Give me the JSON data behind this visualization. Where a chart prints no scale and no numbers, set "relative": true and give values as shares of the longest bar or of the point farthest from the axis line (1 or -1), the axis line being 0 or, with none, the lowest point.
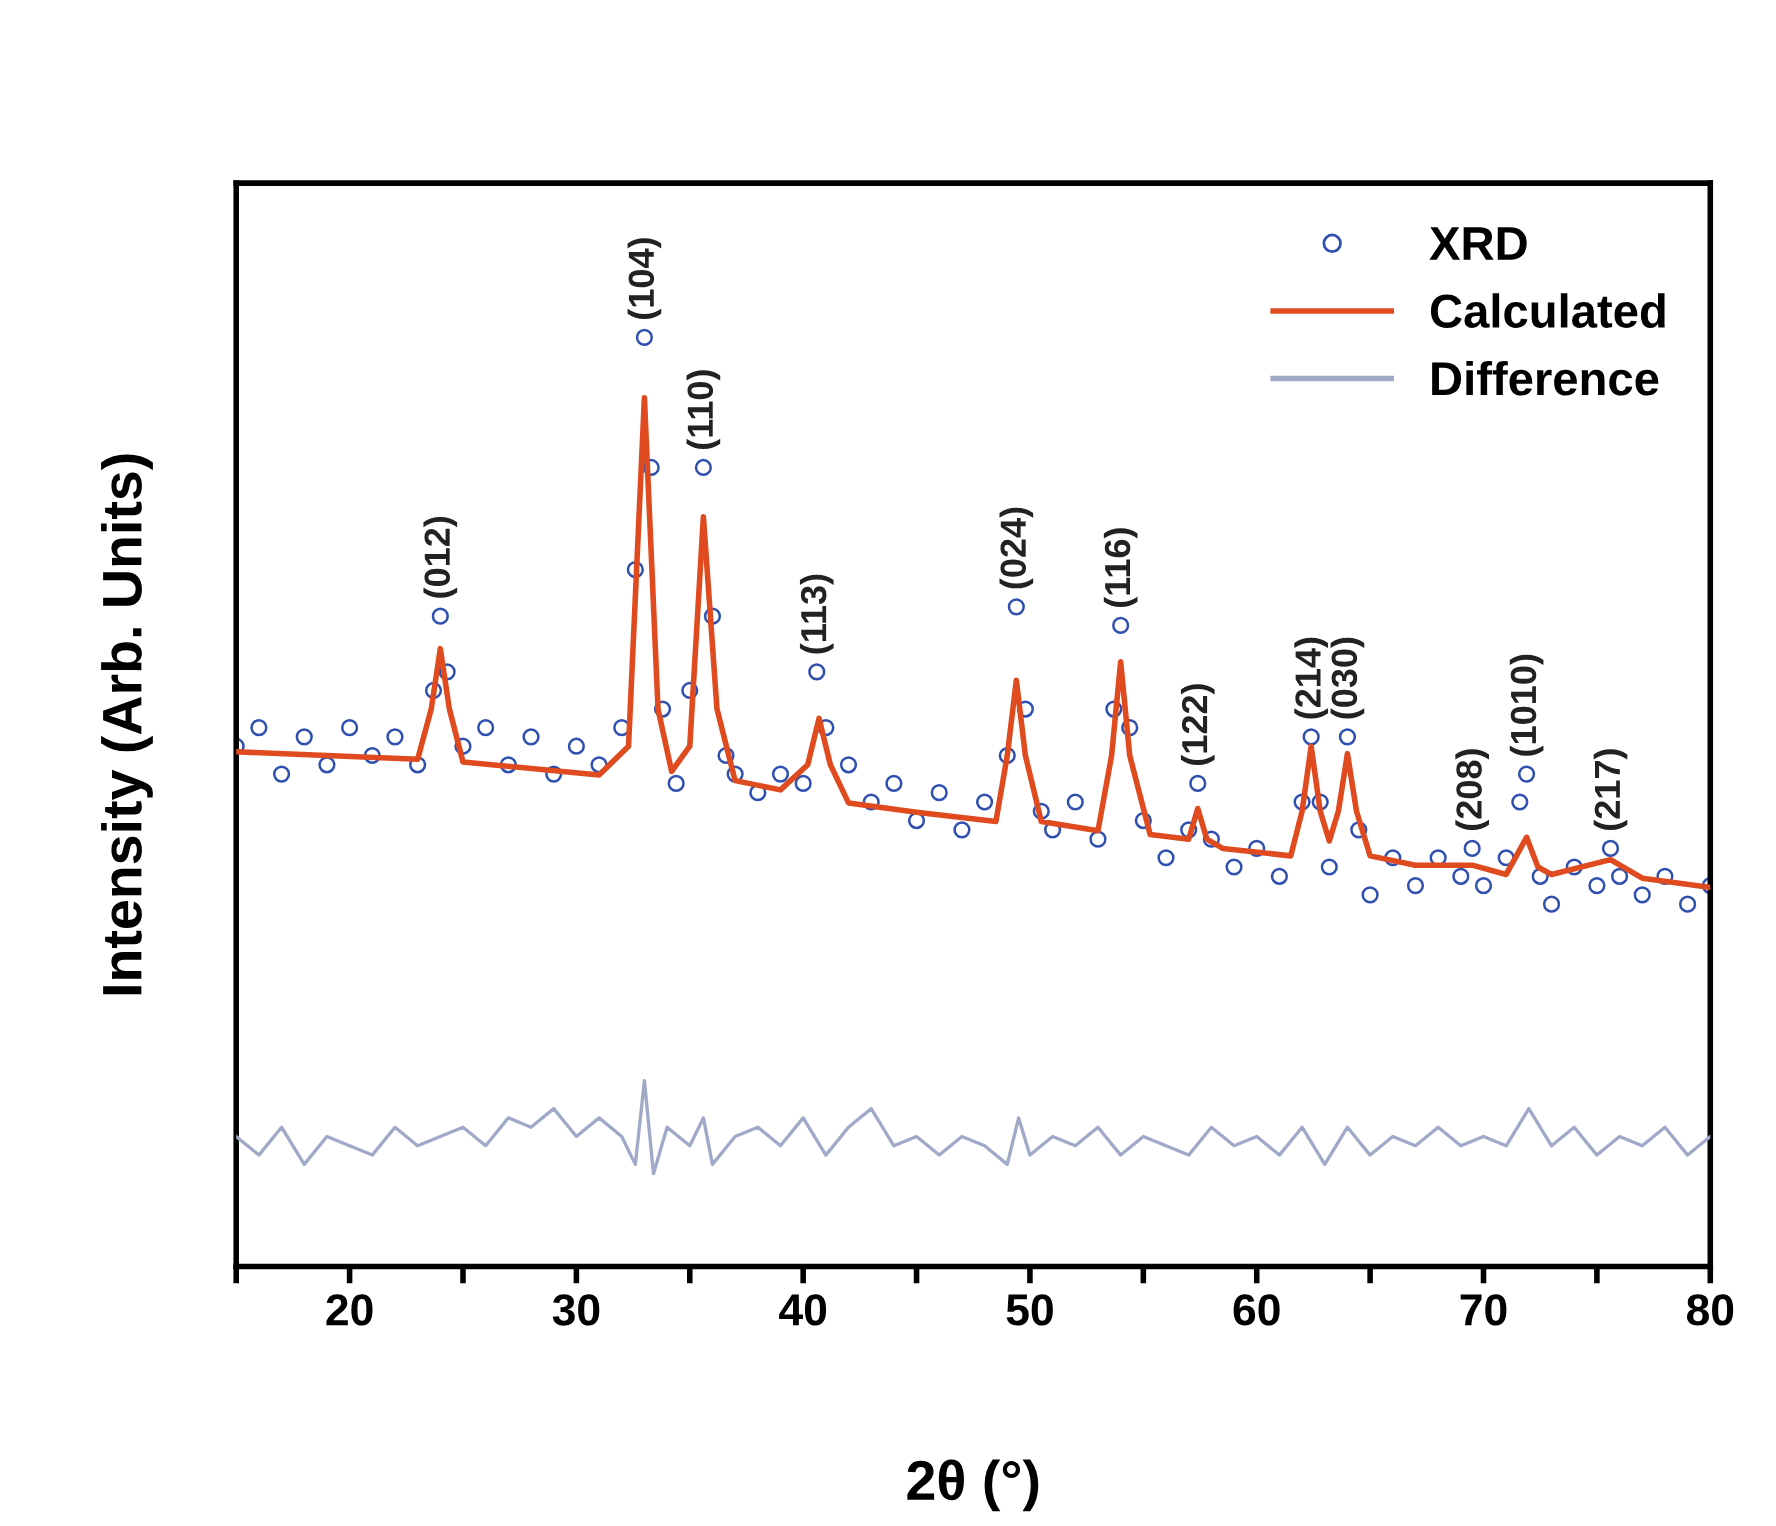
{
  "chart_data": {
    "type": "scatter",
    "xlabel": "2θ (°)",
    "ylabel": "Intensity (Arb. Units)",
    "relative": true,
    "tick_labels": "x",
    "legend": "top right",
    "grid": false,
    "xlim": [
      15,
      80
    ],
    "xticks": [
      {
        "value": 15,
        "label": null
      },
      20,
      {
        "value": 25,
        "label": null
      },
      30,
      {
        "value": 35,
        "label": null
      },
      40,
      {
        "value": 45,
        "label": null
      },
      50,
      {
        "value": 55,
        "label": null
      },
      60,
      {
        "value": 65,
        "label": null
      },
      70,
      {
        "value": 75,
        "label": null
      },
      80
    ],
    "series": [
      {
        "name": "XRD",
        "marker": "circle",
        "color": "#3050b0",
        "x": [
          15,
          16,
          17,
          18,
          19,
          20,
          21,
          22,
          23,
          23.7,
          24,
          24.3,
          25,
          26,
          27,
          28,
          29,
          30,
          31,
          32,
          32.6,
          33,
          33.3,
          33.8,
          34.4,
          35,
          35.6,
          36,
          36.6,
          37,
          38,
          39,
          40,
          40.6,
          41,
          42,
          43,
          44,
          45,
          46,
          47,
          48,
          49,
          49.4,
          49.8,
          50.5,
          51,
          52,
          53,
          53.7,
          54,
          54.4,
          55,
          56,
          57,
          57.4,
          58,
          59,
          60,
          61,
          62,
          62.4,
          62.8,
          63.2,
          64,
          64.5,
          65,
          66,
          67,
          68,
          69,
          69.5,
          70,
          71,
          71.6,
          71.9,
          72.5,
          73,
          74,
          75,
          75.6,
          76,
          77,
          78,
          79,
          80
        ],
        "values": [
          0.56,
          0.58,
          0.53,
          0.57,
          0.54,
          0.58,
          0.55,
          0.57,
          0.54,
          0.62,
          0.7,
          0.64,
          0.56,
          0.58,
          0.54,
          0.57,
          0.53,
          0.56,
          0.54,
          0.58,
          0.75,
          1.0,
          0.86,
          0.6,
          0.52,
          0.62,
          0.86,
          0.7,
          0.55,
          0.53,
          0.51,
          0.53,
          0.52,
          0.64,
          0.58,
          0.54,
          0.5,
          0.52,
          0.48,
          0.51,
          0.47,
          0.5,
          0.55,
          0.71,
          0.6,
          0.49,
          0.47,
          0.5,
          0.46,
          0.6,
          0.69,
          0.58,
          0.48,
          0.44,
          0.47,
          0.52,
          0.46,
          0.43,
          0.45,
          0.42,
          0.5,
          0.57,
          0.5,
          0.43,
          0.57,
          0.47,
          0.4,
          0.44,
          0.41,
          0.44,
          0.42,
          0.45,
          0.41,
          0.44,
          0.5,
          0.53,
          0.42,
          0.39,
          0.43,
          0.41,
          0.45,
          0.42,
          0.4,
          0.42,
          0.39,
          0.41
        ]
      },
      {
        "name": "Calculated",
        "type": "line",
        "line_style": "solid",
        "color": "#e04a1f",
        "x": [
          15,
          23,
          23.6,
          24,
          24.4,
          25,
          31,
          32.3,
          33,
          33.6,
          34.2,
          35,
          35.6,
          36.2,
          37,
          39,
          40.2,
          40.7,
          41.2,
          42,
          45,
          48.5,
          49,
          49.4,
          49.8,
          50.5,
          53,
          53.6,
          54,
          54.4,
          55.3,
          57,
          57.4,
          57.8,
          58.5,
          61.5,
          62,
          62.4,
          62.8,
          63.2,
          63.6,
          64,
          64.4,
          65,
          67,
          69.5,
          71,
          71.9,
          72.4,
          73,
          75.6,
          77,
          80
        ],
        "values": [
          0.554,
          0.546,
          0.6,
          0.665,
          0.6,
          0.543,
          0.529,
          0.56,
          0.935,
          0.6,
          0.533,
          0.56,
          0.807,
          0.6,
          0.523,
          0.513,
          0.54,
          0.59,
          0.54,
          0.499,
          0.489,
          0.479,
          0.55,
          0.631,
          0.55,
          0.479,
          0.469,
          0.55,
          0.651,
          0.55,
          0.465,
          0.46,
          0.493,
          0.46,
          0.45,
          0.442,
          0.49,
          0.56,
          0.49,
          0.458,
          0.49,
          0.552,
          0.49,
          0.442,
          0.432,
          0.432,
          0.422,
          0.462,
          0.43,
          0.422,
          0.438,
          0.418,
          0.408
        ]
      },
      {
        "name": "Difference",
        "type": "line",
        "line_style": "solid",
        "color": "#a0aac8",
        "x": [
          15,
          16,
          17,
          18,
          19,
          20,
          21,
          22,
          23,
          24,
          25,
          26,
          27,
          28,
          29,
          30,
          31,
          32,
          32.6,
          33,
          33.4,
          34,
          35,
          35.6,
          36,
          37,
          38,
          39,
          40,
          41,
          42,
          43,
          44,
          45,
          46,
          47,
          48,
          49,
          49.5,
          50,
          51,
          52,
          53,
          54,
          55,
          56,
          57,
          58,
          59,
          60,
          61,
          62,
          63,
          64,
          65,
          66,
          67,
          68,
          69,
          70,
          71,
          72,
          73,
          74,
          75,
          76,
          77,
          78,
          79,
          80
        ],
        "values": [
          0.14,
          0.12,
          0.15,
          0.11,
          0.14,
          0.13,
          0.12,
          0.15,
          0.13,
          0.14,
          0.15,
          0.13,
          0.16,
          0.15,
          0.17,
          0.14,
          0.16,
          0.14,
          0.11,
          0.2,
          0.1,
          0.15,
          0.13,
          0.16,
          0.11,
          0.14,
          0.15,
          0.13,
          0.16,
          0.12,
          0.15,
          0.17,
          0.13,
          0.14,
          0.12,
          0.14,
          0.13,
          0.11,
          0.16,
          0.12,
          0.14,
          0.13,
          0.15,
          0.12,
          0.14,
          0.13,
          0.12,
          0.15,
          0.13,
          0.14,
          0.12,
          0.15,
          0.11,
          0.15,
          0.12,
          0.14,
          0.13,
          0.15,
          0.13,
          0.14,
          0.13,
          0.17,
          0.13,
          0.15,
          0.12,
          0.14,
          0.13,
          0.15,
          0.12,
          0.14
        ]
      }
    ],
    "annotations": [
      {
        "text": "(012)",
        "x": 24,
        "y": 0.7
      },
      {
        "text": "(104)",
        "x": 33,
        "y": 1.0
      },
      {
        "text": "(110)",
        "x": 35.6,
        "y": 0.86
      },
      {
        "text": "(113)",
        "x": 40.6,
        "y": 0.64
      },
      {
        "text": "(024)",
        "x": 49.4,
        "y": 0.71
      },
      {
        "text": "(116)",
        "x": 54,
        "y": 0.69
      },
      {
        "text": "(122)",
        "x": 57.4,
        "y": 0.52
      },
      {
        "text": "(214)",
        "x": 62.4,
        "y": 0.57
      },
      {
        "text": "(030)",
        "x": 64,
        "y": 0.57
      },
      {
        "text": "(208)",
        "x": 69.5,
        "y": 0.45
      },
      {
        "text": "(1010)",
        "x": 71.9,
        "y": 0.53
      },
      {
        "text": "(217)",
        "x": 75.6,
        "y": 0.45
      }
    ]
  }
}
